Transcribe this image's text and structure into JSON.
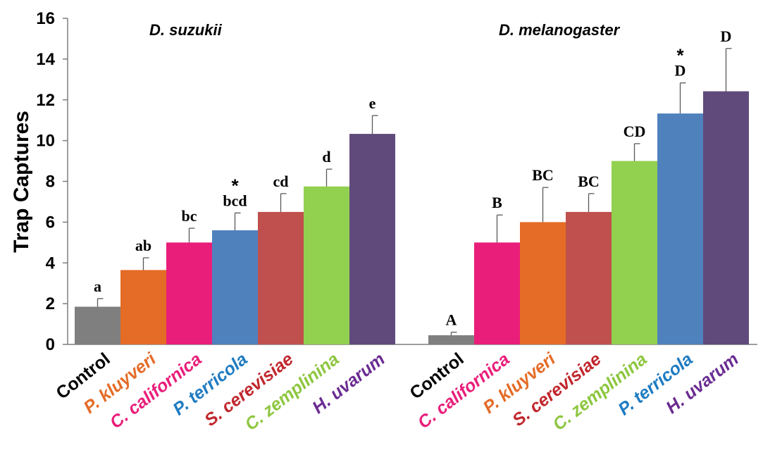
{
  "chart_data": {
    "type": "bar",
    "ylabel": "Trap Captures",
    "ylim": [
      0,
      16
    ],
    "yticks": [
      "0",
      "2",
      "4",
      "6",
      "8",
      "10",
      "12",
      "14",
      "16"
    ],
    "grid": false,
    "groups": [
      {
        "title": "D. suzukii",
        "categories": [
          "Control",
          "P. kluyveri",
          "C. californica",
          "P. terricola",
          "S. cerevisiae",
          "C. zemplinina",
          "H. uvarum"
        ],
        "values": [
          1.85,
          3.65,
          5.0,
          5.6,
          6.5,
          7.75,
          10.33
        ],
        "errors": [
          0.4,
          0.6,
          0.7,
          0.85,
          0.9,
          0.85,
          0.9
        ],
        "labels": [
          "a",
          "ab",
          "bc",
          "bcd",
          "cd",
          "d",
          "e"
        ],
        "stars": [
          "",
          "",
          "",
          "*",
          "",
          "",
          ""
        ],
        "colors": [
          "#7f7f7f",
          "#e46c27",
          "#e91e7a",
          "#4f81bd",
          "#c0504d",
          "#92d050",
          "#604a7b"
        ],
        "label_colors": [
          "#000000",
          "#e46c27",
          "#e91e7a",
          "#1f7bc1",
          "#c0272d",
          "#8dc63f",
          "#6a2c91"
        ]
      },
      {
        "title": "D. melanogaster",
        "categories": [
          "Control",
          "C. californica",
          "P. kluyveri",
          "S. cerevisiae",
          "C. zemplinina",
          "P. terricola",
          "H. uvarum"
        ],
        "values": [
          0.45,
          5.0,
          6.0,
          6.5,
          9.0,
          11.33,
          12.42
        ],
        "errors": [
          0.15,
          1.35,
          1.7,
          0.9,
          0.85,
          1.5,
          2.1
        ],
        "labels": [
          "A",
          "B",
          "BC",
          "BC",
          "CD",
          "D",
          "D"
        ],
        "stars": [
          "",
          "",
          "",
          "",
          "",
          "*",
          ""
        ],
        "colors": [
          "#7f7f7f",
          "#e91e7a",
          "#e46c27",
          "#c0504d",
          "#92d050",
          "#4f81bd",
          "#604a7b"
        ],
        "label_colors": [
          "#000000",
          "#e91e7a",
          "#e46c27",
          "#c0272d",
          "#8dc63f",
          "#1f7bc1",
          "#6a2c91"
        ]
      }
    ]
  }
}
